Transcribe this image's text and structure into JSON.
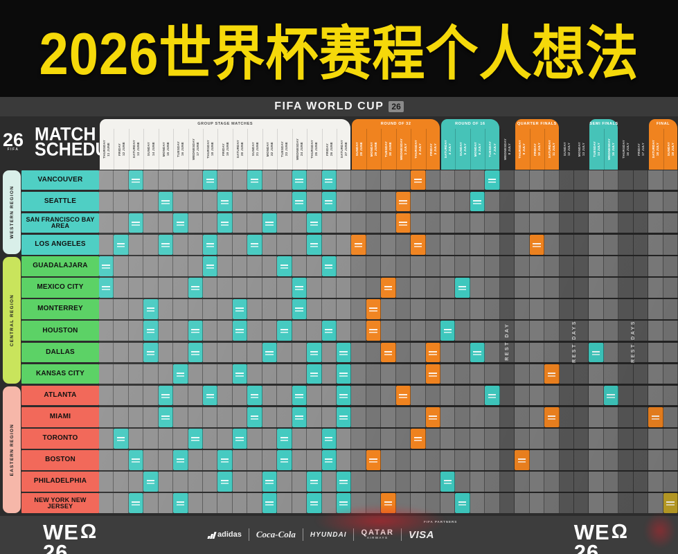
{
  "banner": {
    "title": "2026世界杯赛程个人想法"
  },
  "header": {
    "competition": "FIFA WORLD CUP",
    "badge": "26"
  },
  "schedule_logo": {
    "number": "26",
    "fifa": "FIFA",
    "line1": "MATCH",
    "line2": "SCHEDULE"
  },
  "colors": {
    "banner_title": "#f5d90a",
    "teal_stage": "#3ec8be",
    "orange_stage": "#f0831f",
    "gold_final": "#c0a226",
    "header_teal_block": "#46c3b8",
    "header_orange_block": "#f0831f",
    "west_strip": "#d9efe9",
    "west_city": "#4fcfc4",
    "central_strip": "#c9e45c",
    "central_city": "#5cd266",
    "east_strip": "#f6b7a9",
    "east_city": "#f2695a"
  },
  "stage_blocks": [
    {
      "label": "GROUP STAGE MATCHES",
      "stage": "group",
      "start": 0,
      "span": 17
    },
    {
      "label": "ROUND OF 32",
      "stage": "r32",
      "start": 17,
      "span": 6
    },
    {
      "label": "ROUND OF 16",
      "stage": "r16",
      "start": 23,
      "span": 4
    },
    {
      "label": "QUARTER FINALS",
      "stage": "qf",
      "start": 28,
      "span": 3
    },
    {
      "label": "SEMI FINALS",
      "stage": "sf",
      "start": 33,
      "span": 2
    },
    {
      "label": "FINAL",
      "stage": "final",
      "start": 37,
      "span": 2
    }
  ],
  "columns": [
    {
      "day": "THURSDAY",
      "date": "11 JUNE",
      "stage": "group"
    },
    {
      "day": "FRIDAY",
      "date": "12 JUNE",
      "stage": "group"
    },
    {
      "day": "SATURDAY",
      "date": "13 JUNE",
      "stage": "group"
    },
    {
      "day": "SUNDAY",
      "date": "14 JUNE",
      "stage": "group"
    },
    {
      "day": "MONDAY",
      "date": "15 JUNE",
      "stage": "group"
    },
    {
      "day": "TUESDAY",
      "date": "16 JUNE",
      "stage": "group"
    },
    {
      "day": "WEDNESDAY",
      "date": "17 JUNE",
      "stage": "group"
    },
    {
      "day": "THURSDAY",
      "date": "18 JUNE",
      "stage": "group"
    },
    {
      "day": "FRIDAY",
      "date": "19 JUNE",
      "stage": "group"
    },
    {
      "day": "SATURDAY",
      "date": "20 JUNE",
      "stage": "group"
    },
    {
      "day": "SUNDAY",
      "date": "21 JUNE",
      "stage": "group"
    },
    {
      "day": "MONDAY",
      "date": "22 JUNE",
      "stage": "group"
    },
    {
      "day": "TUESDAY",
      "date": "23 JUNE",
      "stage": "group"
    },
    {
      "day": "WEDNESDAY",
      "date": "24 JUNE",
      "stage": "group"
    },
    {
      "day": "THURSDAY",
      "date": "25 JUNE",
      "stage": "group"
    },
    {
      "day": "FRIDAY",
      "date": "26 JUNE",
      "stage": "group"
    },
    {
      "day": "SATURDAY",
      "date": "27 JUNE",
      "stage": "group"
    },
    {
      "day": "SUNDAY",
      "date": "28 JUNE",
      "stage": "r32"
    },
    {
      "day": "MONDAY",
      "date": "29 JUNE",
      "stage": "r32"
    },
    {
      "day": "TUESDAY",
      "date": "30 JUNE",
      "stage": "r32"
    },
    {
      "day": "WEDNESDAY",
      "date": "1 JULY",
      "stage": "r32"
    },
    {
      "day": "THURSDAY",
      "date": "2 JULY",
      "stage": "r32"
    },
    {
      "day": "FRIDAY",
      "date": "3 JULY",
      "stage": "r32"
    },
    {
      "day": "SATURDAY",
      "date": "4 JULY",
      "stage": "r16"
    },
    {
      "day": "SUNDAY",
      "date": "5 JULY",
      "stage": "r16"
    },
    {
      "day": "MONDAY",
      "date": "6 JULY",
      "stage": "r16"
    },
    {
      "day": "TUESDAY",
      "date": "7 JULY",
      "stage": "r16"
    },
    {
      "day": "WEDNESDAY",
      "date": "8 JULY",
      "stage": "rest"
    },
    {
      "day": "THURSDAY",
      "date": "9 JULY",
      "stage": "qf"
    },
    {
      "day": "FRIDAY",
      "date": "10 JULY",
      "stage": "qf"
    },
    {
      "day": "SATURDAY",
      "date": "11 JULY",
      "stage": "qf"
    },
    {
      "day": "SUNDAY",
      "date": "12 JULY",
      "stage": "rest"
    },
    {
      "day": "MONDAY",
      "date": "13 JULY",
      "stage": "rest"
    },
    {
      "day": "TUESDAY",
      "date": "14 JULY",
      "stage": "sf"
    },
    {
      "day": "WEDNESDAY",
      "date": "15 JULY",
      "stage": "sf"
    },
    {
      "day": "THURSDAY",
      "date": "16 JULY",
      "stage": "rest"
    },
    {
      "day": "FRIDAY",
      "date": "17 JULY",
      "stage": "rest"
    },
    {
      "day": "SATURDAY",
      "date": "18 JULY",
      "stage": "bronze"
    },
    {
      "day": "SUNDAY",
      "date": "19 JULY",
      "stage": "final"
    }
  ],
  "rest_periods": [
    {
      "text": "REST DAY",
      "left_pct": 69.2
    },
    {
      "text": "REST DAYS",
      "left_pct": 80.8
    },
    {
      "text": "REST DAYS",
      "left_pct": 91.0
    }
  ],
  "regions": [
    {
      "name": "WESTERN REGION",
      "strip_color": "#d9efe9",
      "city_color": "#4fcfc4",
      "cities": [
        {
          "name": "VANCOUVER",
          "matches": [
            2,
            7,
            10,
            13,
            15,
            21,
            26
          ]
        },
        {
          "name": "SEATTLE",
          "matches": [
            4,
            8,
            13,
            15,
            20,
            25
          ]
        },
        {
          "name": "SAN FRANCISCO BAY AREA",
          "matches": [
            2,
            5,
            8,
            11,
            14,
            20
          ]
        },
        {
          "name": "LOS ANGELES",
          "matches": [
            1,
            4,
            7,
            10,
            14,
            17,
            21,
            29
          ]
        }
      ]
    },
    {
      "name": "CENTRAL REGION",
      "strip_color": "#c9e45c",
      "city_color": "#5cd266",
      "cities": [
        {
          "name": "GUADALAJARA",
          "matches": [
            0,
            7,
            12,
            15
          ]
        },
        {
          "name": "MEXICO CITY",
          "matches": [
            0,
            6,
            13,
            19,
            24
          ]
        },
        {
          "name": "MONTERREY",
          "matches": [
            3,
            9,
            13,
            18
          ]
        },
        {
          "name": "HOUSTON",
          "matches": [
            3,
            6,
            9,
            12,
            15,
            18,
            23
          ]
        },
        {
          "name": "DALLAS",
          "matches": [
            3,
            6,
            11,
            14,
            16,
            19,
            22,
            25,
            33
          ]
        },
        {
          "name": "KANSAS CITY",
          "matches": [
            5,
            9,
            14,
            16,
            22,
            30
          ]
        }
      ]
    },
    {
      "name": "EASTERN REGION",
      "strip_color": "#f6b7a9",
      "city_color": "#f2695a",
      "cities": [
        {
          "name": "ATLANTA",
          "matches": [
            4,
            7,
            10,
            13,
            16,
            20,
            26,
            34
          ]
        },
        {
          "name": "MIAMI",
          "matches": [
            4,
            10,
            13,
            16,
            22,
            30,
            37
          ]
        },
        {
          "name": "TORONTO",
          "matches": [
            1,
            6,
            9,
            12,
            15,
            21
          ]
        },
        {
          "name": "BOSTON",
          "matches": [
            2,
            5,
            8,
            12,
            15,
            18,
            28
          ]
        },
        {
          "name": "PHILADELPHIA",
          "matches": [
            3,
            8,
            11,
            14,
            16,
            23
          ]
        },
        {
          "name": "NEW YORK NEW JERSEY",
          "matches": [
            2,
            5,
            11,
            14,
            16,
            19,
            24,
            38
          ]
        }
      ]
    }
  ],
  "footer": {
    "partners_label": "FIFA PARTNERS",
    "we_logo": {
      "line1": "WE",
      "line2": "26"
    },
    "sponsors": [
      "adidas",
      "Coca-Cola",
      "HYUNDAI",
      "QATAR AIRWAYS",
      "VISA"
    ]
  }
}
